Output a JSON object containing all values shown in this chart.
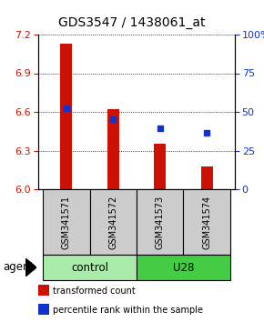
{
  "title": "GDS3547 / 1438061_at",
  "samples": [
    "GSM341571",
    "GSM341572",
    "GSM341573",
    "GSM341574"
  ],
  "bar_values": [
    7.13,
    6.62,
    6.35,
    6.18
  ],
  "bar_bottom": 6.0,
  "blue_y": [
    6.625,
    6.545,
    6.47,
    6.44
  ],
  "ylim_left": [
    6.0,
    7.2
  ],
  "ylim_right": [
    0,
    100
  ],
  "yticks_left": [
    6.0,
    6.3,
    6.6,
    6.9,
    7.2
  ],
  "yticks_right": [
    0,
    25,
    50,
    75,
    100
  ],
  "bar_color": "#cc1100",
  "blue_color": "#1133cc",
  "groups": [
    {
      "label": "control",
      "indices": [
        0,
        1
      ],
      "color": "#aaeaaa"
    },
    {
      "label": "U28",
      "indices": [
        2,
        3
      ],
      "color": "#44cc44"
    }
  ],
  "sample_box_color": "#cccccc",
  "agent_label": "agent",
  "legend_items": [
    {
      "color": "#cc1100",
      "label": "transformed count"
    },
    {
      "color": "#1133cc",
      "label": "percentile rank within the sample"
    }
  ],
  "title_fontsize": 10,
  "tick_fontsize": 8,
  "bar_width": 0.25,
  "fig_width": 2.9,
  "fig_height": 3.54,
  "fig_dpi": 100
}
